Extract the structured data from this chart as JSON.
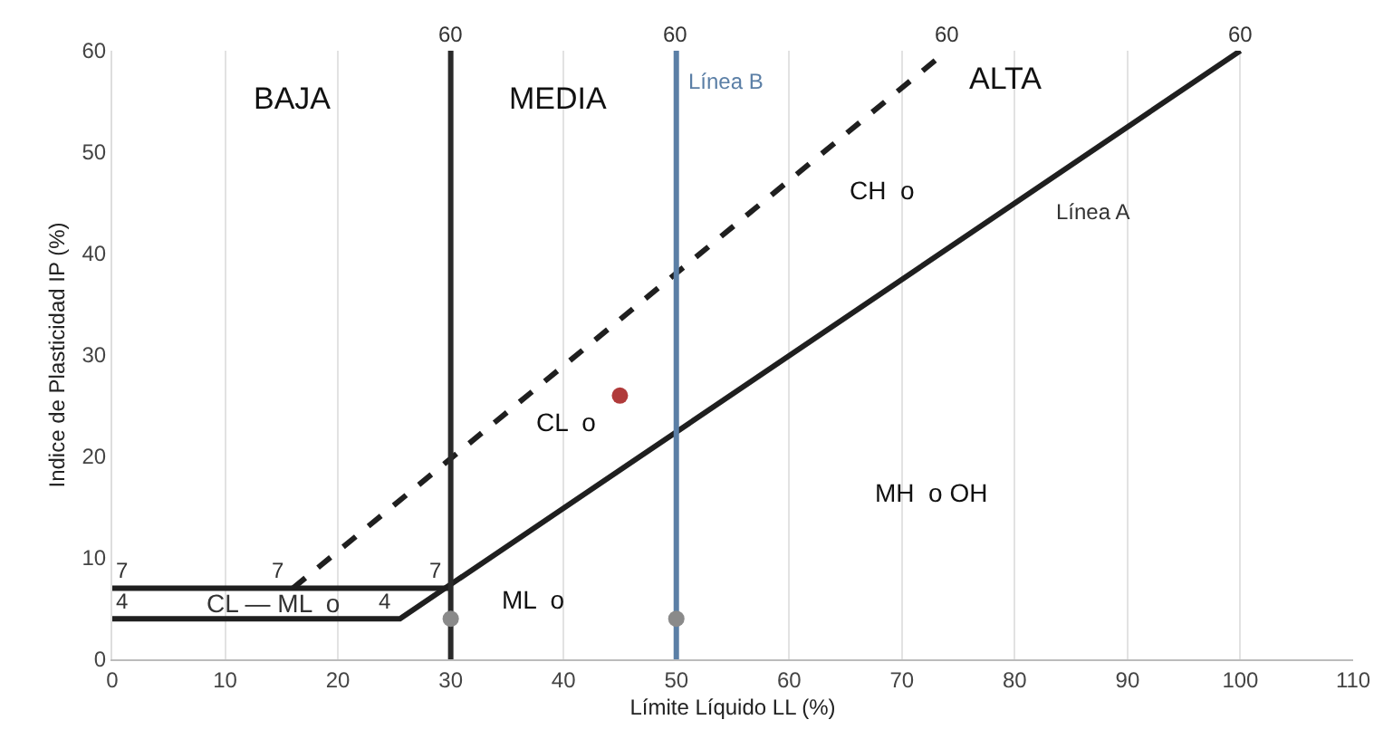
{
  "chart_data": {
    "type": "line",
    "xlabel": "Límite Líquido LL (%)",
    "ylabel": "Indice de Plasticidad IP (%)",
    "xlim": [
      0,
      110
    ],
    "xticks": [
      0,
      10,
      20,
      30,
      40,
      50,
      60,
      70,
      80,
      90,
      100,
      110
    ],
    "ylim": [
      0,
      60
    ],
    "yticks": [
      0,
      10,
      20,
      30,
      40,
      50,
      60
    ],
    "grid": "x",
    "series": [
      {
        "x": [
          0,
          25.5,
          100
        ],
        "values": [
          4,
          4,
          60
        ],
        "color": "#1f1f1f",
        "line_style": "solid"
      },
      {
        "x": [
          0,
          30
        ],
        "values": [
          7,
          7
        ],
        "color": "#1f1f1f",
        "line_style": "solid"
      },
      {
        "x": [
          16,
          74
        ],
        "values": [
          7,
          60
        ],
        "color": "#1f1f1f",
        "line_style": "dashed"
      },
      {
        "x": [
          30,
          30
        ],
        "values": [
          0,
          60
        ],
        "color": "#2a2a2a",
        "line_style": "solid"
      },
      {
        "x": [
          50,
          50
        ],
        "values": [
          0,
          60
        ],
        "color": "#5b7fa6",
        "line_style": "solid"
      },
      {
        "type": "scatter",
        "x": [
          30,
          50
        ],
        "values": [
          4,
          4
        ],
        "color": "#8a8a8a",
        "marker": "circle"
      },
      {
        "type": "scatter",
        "x": [
          45
        ],
        "values": [
          26
        ],
        "color": "#b03a3a",
        "marker": "circle"
      }
    ],
    "annotations": [
      "BAJA",
      "MEDIA",
      "ALTA",
      "Línea B",
      "CH  o",
      "Línea A",
      "CL  o",
      "MH  o OH",
      "ML  o",
      "CL — ML  o",
      {
        "text": "60",
        "x": 30,
        "y": 60
      },
      {
        "text": "60",
        "x": 50,
        "y": 60
      },
      {
        "text": "60",
        "x": 74,
        "y": 60
      },
      {
        "text": "60",
        "x": 100,
        "y": 60
      },
      {
        "text": "7",
        "x": 0,
        "y": 7
      },
      {
        "text": "4",
        "x": 0,
        "y": 4
      },
      {
        "text": "7",
        "x": 16,
        "y": 7
      },
      {
        "text": "7",
        "x": 30,
        "y": 7
      },
      {
        "text": "4",
        "x": 25.5,
        "y": 4
      }
    ]
  }
}
